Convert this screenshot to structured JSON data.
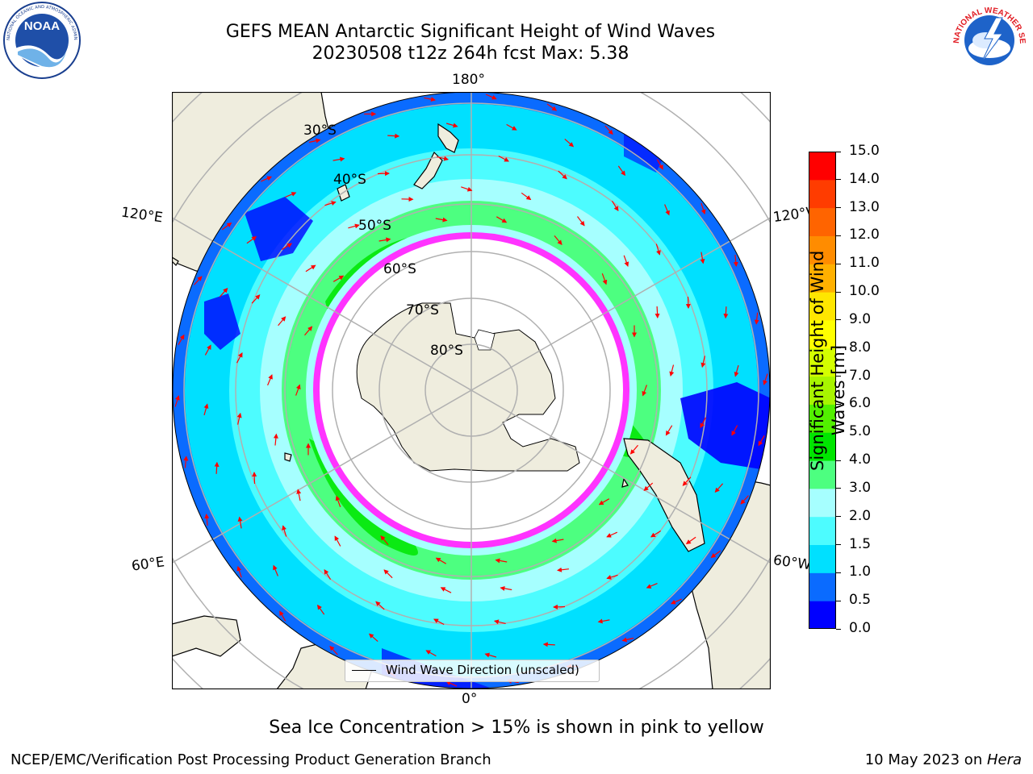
{
  "header": {
    "title_line1": "GEFS MEAN Antarctic Significant Height of Wind Waves",
    "title_line2": "20230508 t12z 264h fcst   Max: 5.38"
  },
  "logos": {
    "left": {
      "name": "noaa-logo",
      "text": "NOAA",
      "ring_text": "NATIONAL OCEANIC AND ATMOSPHERIC ADMINISTRATION · U.S. DEPARTMENT OF COMMERCE"
    },
    "right": {
      "name": "national-weather-service-logo",
      "ring_text": "NATIONAL WEATHER SERVICE"
    }
  },
  "map": {
    "projection": "south-polar-stereographic",
    "longitude_labels": {
      "top": "180°",
      "bottom": "0°",
      "upper_left": "120°E",
      "lower_left": "60°E",
      "upper_right": "120°W",
      "lower_right": "60°W"
    },
    "latitude_labels": [
      "30°S",
      "40°S",
      "50°S",
      "60°S",
      "70°S",
      "80°S"
    ],
    "legend_label": "Wind Wave Direction (unscaled)",
    "colors": {
      "land": "#efedde",
      "sea_ice": "#ffffff",
      "ice_edge": "#ff33ff",
      "arrow": "#ff0000",
      "gridline": "#b0b0b0"
    }
  },
  "colorbar": {
    "label": "Significant Height of Wind Waves [m]",
    "label_line1": "Significant Height of Wind",
    "label_line2": "Waves [m]",
    "ticks": [
      "0.0",
      "0.5",
      "1.0",
      "1.5",
      "2.0",
      "3.0",
      "4.0",
      "5.0",
      "6.0",
      "7.0",
      "8.0",
      "9.0",
      "10.0",
      "11.0",
      "12.0",
      "13.0",
      "14.0",
      "15.0"
    ],
    "colors": [
      "#0000ff",
      "#0a6bff",
      "#00e0ff",
      "#4dfcff",
      "#a6ffff",
      "#4dff80",
      "#00e600",
      "#52f000",
      "#a8f500",
      "#d4ff00",
      "#ffff00",
      "#ffe600",
      "#ffb000",
      "#ff8c00",
      "#ff6400",
      "#ff3c00",
      "#ff0000"
    ]
  },
  "footer": {
    "note": "Sea Ice Concentration > 15% is shown in pink to yellow",
    "left": "NCEP/EMC/Verification Post Processing Product Generation Branch",
    "right_prefix": "10 May 2023 on ",
    "right_machine": "Hera"
  }
}
